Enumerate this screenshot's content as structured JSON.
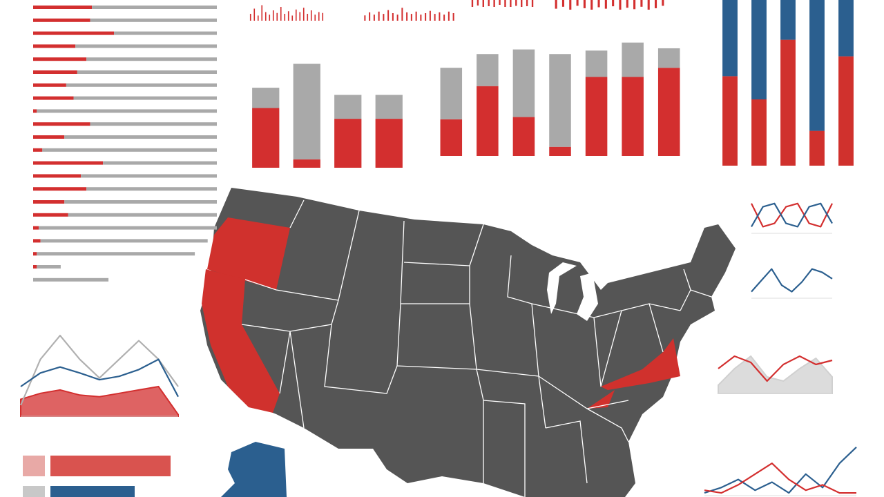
{
  "chart_data": [
    {
      "type": "bar",
      "horizontal": true,
      "stacked": true,
      "xlim": [
        0,
        100
      ],
      "series": [
        {
          "color": "#d32f2f",
          "values": [
            32,
            31,
            44,
            23,
            29,
            24,
            18,
            22,
            2,
            31,
            17,
            5,
            38,
            26,
            29,
            17,
            19,
            3,
            4,
            2,
            2,
            0
          ]
        },
        {
          "color": "#a9a9a9",
          "values": [
            68,
            69,
            56,
            77,
            71,
            76,
            82,
            78,
            98,
            69,
            83,
            95,
            62,
            74,
            71,
            83,
            81,
            97,
            91,
            86,
            13,
            41
          ]
        }
      ]
    },
    {
      "type": "bar",
      "stacked": true,
      "ylim": [
        0,
        100
      ],
      "series": [
        {
          "color": "#d32f2f",
          "values": [
            50,
            7,
            41,
            41
          ]
        },
        {
          "color": "#a9a9a9",
          "values": [
            17,
            80,
            20,
            20
          ]
        }
      ]
    },
    {
      "type": "bar",
      "stacked": true,
      "ylim": [
        0,
        100
      ],
      "series": [
        {
          "color": "#d32f2f",
          "values": [
            32,
            61,
            34,
            8,
            69,
            69,
            77
          ]
        },
        {
          "color": "#a9a9a9",
          "values": [
            45,
            28,
            59,
            81,
            23,
            30,
            17
          ]
        }
      ]
    },
    {
      "type": "bar",
      "stacked": true,
      "ylim": [
        0,
        100
      ],
      "series": [
        {
          "color": "#d0312d",
          "values": [
            54,
            40,
            76,
            21,
            66
          ]
        },
        {
          "color": "#2b5f8f",
          "values": [
            46,
            60,
            24,
            79,
            34
          ]
        }
      ]
    },
    {
      "type": "line",
      "ylim": [
        0,
        100
      ],
      "series": [
        {
          "color": "#d32f2f",
          "fill": true,
          "values": [
            20,
            27,
            31,
            25,
            23,
            27,
            31,
            35,
            2
          ]
        },
        {
          "color": "#b0b0b0",
          "values": [
            13,
            67,
            95,
            67,
            45,
            67,
            89,
            67,
            35
          ]
        },
        {
          "color": "#2b5f8f",
          "values": [
            35,
            51,
            58,
            51,
            43,
            47,
            55,
            67,
            23
          ]
        }
      ]
    },
    {
      "type": "bar",
      "horizontal": true,
      "xlim": [
        0,
        100
      ],
      "values": [
        87,
        61
      ],
      "colors": [
        "#d9534f",
        "#2b5f8f"
      ]
    },
    {
      "type": "line",
      "ylim": [
        0,
        100
      ],
      "series": [
        {
          "color": "#d32f2f",
          "values": [
            90,
            20,
            30,
            80,
            90,
            30,
            20,
            90
          ]
        },
        {
          "color": "#2b5f8f",
          "values": [
            20,
            80,
            90,
            30,
            20,
            80,
            90,
            30
          ]
        }
      ]
    },
    {
      "type": "line",
      "ylim": [
        0,
        100
      ],
      "series": [
        {
          "color": "#2b5f8f",
          "values": [
            20,
            55,
            90,
            40,
            20,
            50,
            90,
            80,
            60
          ]
        }
      ]
    },
    {
      "type": "line",
      "ylim": [
        0,
        100
      ],
      "series": [
        {
          "color": "#d0d0d0",
          "fill": true,
          "values": [
            20,
            60,
            90,
            40,
            30,
            60,
            85,
            40
          ]
        },
        {
          "color": "#d32f2f",
          "values": [
            60,
            90,
            75,
            30,
            70,
            90,
            70,
            80
          ]
        }
      ]
    },
    {
      "type": "line",
      "ylim": [
        0,
        100
      ],
      "series": [
        {
          "color": "#2b5f8f",
          "values": [
            5,
            15,
            30,
            10,
            25,
            5,
            40,
            15,
            60,
            90
          ]
        },
        {
          "color": "#d32f2f",
          "values": [
            10,
            5,
            20,
            40,
            60,
            30,
            10,
            20,
            5,
            5
          ]
        }
      ]
    },
    {
      "type": "bar",
      "ylim": [
        0,
        100
      ],
      "color": "#d32f2f",
      "values": [
        40,
        70,
        30,
        90,
        50,
        35,
        60,
        45,
        80,
        40,
        55,
        30,
        65,
        50,
        75,
        40,
        60,
        35,
        50,
        45
      ]
    },
    {
      "type": "bar",
      "ylim": [
        0,
        100
      ],
      "color": "#d32f2f",
      "values": [
        35,
        55,
        40,
        60,
        45,
        70,
        50,
        40,
        85,
        55,
        45,
        60,
        40,
        50,
        65,
        45,
        55,
        40,
        60,
        50
      ]
    },
    {
      "type": "bar",
      "ylim": [
        0,
        100
      ],
      "color": "#d32f2f",
      "values": [
        100,
        80,
        100,
        90,
        100,
        70,
        100,
        100,
        85,
        100,
        90,
        100
      ]
    },
    {
      "type": "bar",
      "ylim": [
        0,
        100
      ],
      "color": "#d32f2f",
      "values": [
        90,
        70,
        100,
        60,
        85,
        100,
        75,
        90,
        65,
        100,
        80,
        95,
        70,
        100,
        85,
        60
      ]
    }
  ]
}
